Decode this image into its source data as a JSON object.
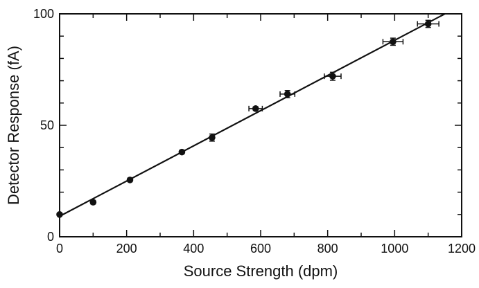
{
  "chart_data": {
    "type": "scatter",
    "title": "",
    "xlabel": "Source Strength (dpm)",
    "ylabel": "Detector Response (fA)",
    "xlim": [
      0,
      1200
    ],
    "ylim": [
      0,
      100
    ],
    "x_ticks": [
      0,
      200,
      400,
      600,
      800,
      1000,
      1200
    ],
    "y_ticks": [
      0,
      50,
      100
    ],
    "x_minor_step": 100,
    "y_minor_step": 10,
    "grid": false,
    "legend": "none",
    "colors": {
      "marker": "#111111",
      "line": "#111111",
      "axis": "#111111"
    },
    "series": [
      {
        "x": [
          0,
          100,
          210,
          365,
          455,
          585,
          680,
          815,
          995,
          1100
        ],
        "y": [
          10,
          15.5,
          25.5,
          38,
          44.5,
          57.5,
          64,
          72,
          87.5,
          95.5
        ],
        "x_err": [
          0,
          0,
          0,
          0,
          0,
          20,
          22,
          25,
          30,
          32
        ],
        "y_err": [
          0,
          0.8,
          0.8,
          0.8,
          1.6,
          0.8,
          1.6,
          1.8,
          1.6,
          1.6
        ]
      }
    ],
    "fit_line": {
      "x": [
        0,
        1150
      ],
      "y": [
        9.2,
        100
      ]
    }
  }
}
